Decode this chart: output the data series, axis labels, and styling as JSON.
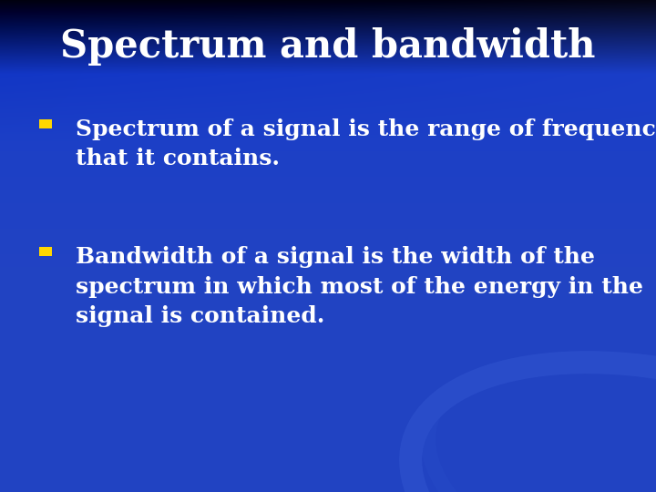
{
  "title": "Spectrum and bandwidth",
  "title_color": "#FFFFFF",
  "title_fontsize": 30,
  "title_fontstyle": "normal",
  "bullet_color": "#FFD700",
  "bullet_text_color": "#FFFFFF",
  "bullet_fontsize": 18,
  "bullets": [
    "Spectrum of a signal is the range of frequencies\nthat it contains.",
    "Bandwidth of a signal is the width of the\nspectrum in which most of the energy in the\nsignal is contained."
  ],
  "bg_main": "#1a3ec8",
  "figwidth": 7.2,
  "figheight": 5.4,
  "dpi": 100
}
